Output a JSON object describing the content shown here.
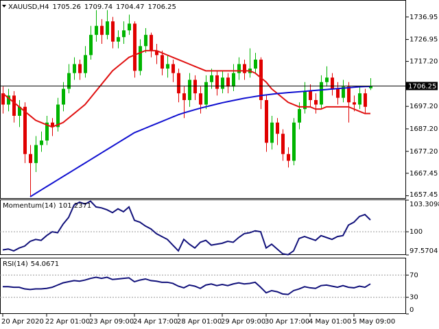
{
  "chart_data": [
    {
      "type": "candlestick",
      "title": "XAUUSD,H4",
      "candles": {
        "open": [
          1703,
          1698,
          1702,
          1693,
          1697,
          1676,
          1672,
          1680,
          1682,
          1690,
          1688,
          1698,
          1705,
          1712,
          1716,
          1712,
          1720,
          1729,
          1733,
          1729,
          1735,
          1726,
          1728,
          1731,
          1734,
          1713,
          1724,
          1729,
          1722,
          1720,
          1714,
          1716,
          1712,
          1703,
          1700,
          1709,
          1703,
          1698,
          1708,
          1711,
          1705,
          1710,
          1706,
          1712,
          1716,
          1712,
          1714,
          1718,
          1700,
          1681,
          1690,
          1685,
          1676,
          1673,
          1690,
          1696,
          1704,
          1700,
          1698,
          1708,
          1710,
          1705,
          1701,
          1706,
          1699,
          1698,
          1703,
          1705.26
        ],
        "high": [
          1706,
          1705,
          1704,
          1700,
          1699,
          1680,
          1684,
          1686,
          1693,
          1692,
          1701,
          1708,
          1716,
          1719,
          1718,
          1724,
          1733,
          1740,
          1736,
          1740,
          1737,
          1731,
          1735,
          1738,
          1735,
          1727,
          1732,
          1730,
          1725,
          1722,
          1720,
          1718,
          1714,
          1706,
          1712,
          1711,
          1706,
          1711,
          1714,
          1713,
          1713,
          1712,
          1716,
          1719,
          1718,
          1723,
          1721,
          1719,
          1702,
          1693,
          1692,
          1687,
          1679,
          1692,
          1699,
          1708,
          1707,
          1703,
          1711,
          1715,
          1712,
          1708,
          1709,
          1708,
          1702,
          1706,
          1705,
          1709.74
        ],
        "low": [
          1694,
          1695,
          1690,
          1688,
          1672,
          1657,
          1668,
          1677,
          1680,
          1684,
          1686,
          1695,
          1703,
          1709,
          1709,
          1710,
          1718,
          1726,
          1725,
          1727,
          1723,
          1723,
          1725,
          1729,
          1710,
          1711,
          1721,
          1719,
          1716,
          1711,
          1710,
          1708,
          1699,
          1692,
          1697,
          1700,
          1694,
          1696,
          1705,
          1702,
          1703,
          1703,
          1704,
          1709,
          1709,
          1710,
          1712,
          1696,
          1677,
          1678,
          1680,
          1673,
          1670,
          1671,
          1687,
          1694,
          1697,
          1694,
          1696,
          1706,
          1702,
          1698,
          1699,
          1690,
          1695,
          1696,
          1694,
          1704.47
        ],
        "close": [
          1698,
          1702,
          1693,
          1697,
          1676,
          1672,
          1680,
          1682,
          1690,
          1688,
          1698,
          1705,
          1712,
          1716,
          1712,
          1720,
          1729,
          1733,
          1729,
          1735,
          1726,
          1728,
          1731,
          1734,
          1713,
          1724,
          1729,
          1722,
          1720,
          1714,
          1716,
          1712,
          1703,
          1700,
          1709,
          1703,
          1698,
          1708,
          1711,
          1705,
          1710,
          1706,
          1712,
          1716,
          1712,
          1714,
          1718,
          1700,
          1681,
          1690,
          1685,
          1676,
          1673,
          1690,
          1696,
          1704,
          1700,
          1698,
          1708,
          1710,
          1705,
          1701,
          1706,
          1699,
          1698,
          1703,
          1697,
          1706.25
        ]
      },
      "up_color": "#00b400",
      "down_color": "#e00000",
      "series": [
        {
          "color": "#e01010",
          "values": [
            1703,
            1701,
            1699,
            1697,
            1695,
            1693,
            1691,
            1690,
            1689,
            1688,
            1689,
            1690,
            1692,
            1694,
            1696,
            1698,
            1701,
            1704,
            1707,
            1710,
            1713,
            1715,
            1717,
            1719,
            1720,
            1721,
            1722,
            1722,
            1722,
            1721,
            1720,
            1719,
            1718,
            1717,
            1716,
            1715,
            1714,
            1713,
            1713,
            1713,
            1713,
            1713,
            1713,
            1713,
            1713,
            1713,
            1712,
            1710,
            1708,
            1705,
            1703,
            1701,
            1699,
            1698,
            1697,
            1697,
            1697,
            1696,
            1696,
            1697,
            1697,
            1697,
            1697,
            1697,
            1696,
            1695,
            1694,
            1694
          ]
        },
        {
          "color": "#1010d0",
          "values": [
            null,
            null,
            null,
            null,
            null,
            1657,
            1658.5,
            1660,
            1661.5,
            1663,
            1664.5,
            1666,
            1667.5,
            1669,
            1670.5,
            1672,
            1673.5,
            1675,
            1676.5,
            1678,
            1679.5,
            1681,
            1682.5,
            1684,
            1685.5,
            1686.5,
            1687.5,
            1688.5,
            1689.5,
            1690.5,
            1691.5,
            1692.5,
            1693.5,
            1694.3,
            1695,
            1695.7,
            1696.4,
            1697,
            1697.6,
            1698.2,
            1698.8,
            1699.3,
            1699.8,
            1700.3,
            1700.8,
            1701.2,
            1701.6,
            1702,
            1702.3,
            1702.6,
            1702.9,
            1703.1,
            1703.3,
            1703.5,
            1703.7,
            1703.9,
            1704.1,
            1704.3,
            1704.5,
            1704.7,
            1704.9,
            1705.1,
            1705.3,
            1705.5,
            1705.7,
            1705.9,
            1706,
            1706.1
          ]
        }
      ],
      "ylim": [
        1656.1,
        1744.2
      ],
      "yticks": [
        1736.95,
        1726.95,
        {
          "value": 1717.2,
          "label": "1717.20"
        },
        {
          "value": 1697.2,
          "label": "1697.20"
        },
        {
          "value": 1687.2,
          "label": "1687.20"
        },
        {
          "value": 1677.2,
          "label": "1677.20"
        },
        1667.45,
        1657.45
      ],
      "xticks": [
        {
          "value": 0,
          "label": "20 Apr 2020"
        },
        {
          "value": 8,
          "label": "22 Apr 01:00"
        },
        {
          "value": 16,
          "label": "23 Apr 09:00"
        },
        {
          "value": 24,
          "label": "24 Apr 17:00"
        },
        {
          "value": 32,
          "label": "28 Apr 01:00"
        },
        {
          "value": 40,
          "label": "29 Apr 09:00"
        },
        {
          "value": 48,
          "label": "30 Apr 17:00"
        },
        {
          "value": 56,
          "label": "4 May 01:00"
        },
        {
          "value": 64,
          "label": "5 May 09:00"
        }
      ]
    },
    {
      "type": "line",
      "title": "Momentum(14)",
      "series": [
        {
          "color": "#10107a",
          "values": [
            98.1,
            98.2,
            98.0,
            98.3,
            98.5,
            99.0,
            99.2,
            99.1,
            99.6,
            100.0,
            99.9,
            100.8,
            101.5,
            102.8,
            103.1,
            102.9,
            103.2,
            102.6,
            102.5,
            102.3,
            102.0,
            102.4,
            102.1,
            102.6,
            101.2,
            101.0,
            100.6,
            100.3,
            99.8,
            99.5,
            99.2,
            98.6,
            98.0,
            99.2,
            98.7,
            98.3,
            98.9,
            99.1,
            98.6,
            98.7,
            98.8,
            99.0,
            98.9,
            99.4,
            99.8,
            99.9,
            100.1,
            100.0,
            98.3,
            98.7,
            98.2,
            97.7,
            97.6,
            98.0,
            99.3,
            99.5,
            99.3,
            99.1,
            99.6,
            99.4,
            99.2,
            99.5,
            99.6,
            100.7,
            101.0,
            101.6,
            101.8,
            101.2371
          ]
        }
      ],
      "ylim": [
        97.5704,
        103.3098
      ],
      "yticks": [
        103.3098,
        100,
        97.5704
      ],
      "levels": [
        100
      ]
    },
    {
      "type": "line",
      "title": "RSI(14)",
      "series": [
        {
          "color": "#10107a",
          "values": [
            49,
            49,
            48,
            48,
            45,
            44,
            45,
            45,
            46,
            48,
            52,
            56,
            58,
            60,
            59,
            61,
            64,
            66,
            64,
            66,
            62,
            63,
            64,
            65,
            58,
            61,
            63,
            60,
            59,
            57,
            57,
            55,
            50,
            47,
            52,
            50,
            46,
            52,
            54,
            51,
            53,
            51,
            54,
            56,
            54,
            55,
            57,
            48,
            38,
            42,
            40,
            36,
            35,
            42,
            45,
            49,
            47,
            46,
            51,
            52,
            50,
            48,
            51,
            48,
            47,
            50,
            48,
            54.0671
          ]
        }
      ],
      "ylim": [
        0,
        100
      ],
      "yticks": [
        70,
        30,
        0
      ],
      "levels": [
        70,
        30
      ]
    }
  ]
}
